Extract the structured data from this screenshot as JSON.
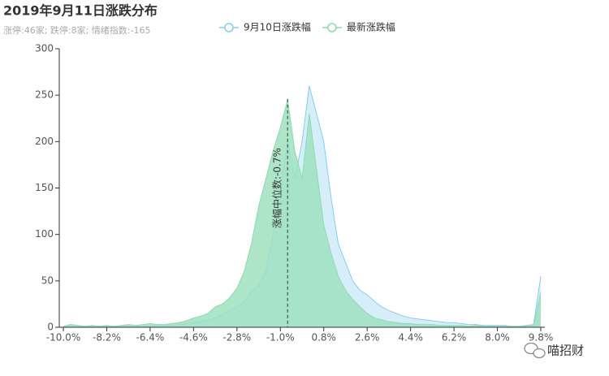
{
  "chart_data": {
    "type": "area",
    "title": "2019年9月11日涨跌分布",
    "subtitle": "涨停:46家; 跌停:8家; 情绪指数:-165",
    "x": [
      -10,
      -9.7,
      -9.4,
      -9.1,
      -8.8,
      -8.5,
      -8.2,
      -7.9,
      -7.6,
      -7.3,
      -7,
      -6.7,
      -6.4,
      -6.1,
      -5.8,
      -5.5,
      -5.2,
      -4.9,
      -4.6,
      -4.3,
      -4,
      -3.7,
      -3.4,
      -3.1,
      -2.8,
      -2.5,
      -2.2,
      -1.9,
      -1.6,
      -1.3,
      -1,
      -0.7,
      -0.4,
      -0.1,
      0.2,
      0.5,
      0.8,
      1.1,
      1.4,
      1.7,
      2,
      2.3,
      2.6,
      2.9,
      3.2,
      3.5,
      3.8,
      4.1,
      4.4,
      4.7,
      5,
      5.3,
      5.6,
      5.9,
      6.2,
      6.5,
      6.8,
      7.1,
      7.4,
      7.7,
      8,
      8.3,
      8.6,
      8.9,
      9.2,
      9.5,
      9.8
    ],
    "series": [
      {
        "name": "9月10日涨跌幅",
        "color": "#86cdf0",
        "fill": "#d6eef9",
        "values": [
          1,
          1,
          1,
          1,
          1,
          1,
          1,
          1,
          1,
          1,
          1,
          1,
          2,
          2,
          2,
          2,
          3,
          4,
          5,
          6,
          8,
          10,
          14,
          18,
          22,
          28,
          38,
          45,
          60,
          100,
          150,
          200,
          160,
          200,
          260,
          230,
          200,
          140,
          90,
          70,
          50,
          40,
          35,
          28,
          22,
          18,
          15,
          12,
          10,
          9,
          8,
          7,
          6,
          5,
          5,
          4,
          3,
          3,
          2,
          2,
          2,
          2,
          1,
          1,
          2,
          3,
          55
        ]
      },
      {
        "name": "最新涨跌幅",
        "color": "#8ddbb1",
        "fill": "#9fe0c0",
        "values": [
          1,
          3,
          2,
          1,
          2,
          1,
          2,
          1,
          2,
          3,
          2,
          3,
          4,
          3,
          3,
          4,
          5,
          7,
          10,
          12,
          15,
          22,
          25,
          32,
          42,
          60,
          90,
          130,
          160,
          190,
          215,
          245,
          190,
          160,
          230,
          170,
          110,
          80,
          55,
          40,
          30,
          22,
          15,
          10,
          8,
          6,
          5,
          4,
          4,
          3,
          3,
          3,
          2,
          2,
          2,
          2,
          1,
          2,
          1,
          1,
          1,
          1,
          1,
          1,
          1,
          2,
          38
        ]
      }
    ],
    "xlim": [
      -10,
      9.8
    ],
    "xticks": [
      {
        "value": -10,
        "label": "-10.0%"
      },
      {
        "value": -8.2,
        "label": "-8.2%"
      },
      {
        "value": -6.4,
        "label": "-6.4%"
      },
      {
        "value": -4.6,
        "label": "-4.6%"
      },
      {
        "value": -2.8,
        "label": "-2.8%"
      },
      {
        "value": -1,
        "label": "-1.0%"
      },
      {
        "value": 0.8,
        "label": "0.8%"
      },
      {
        "value": 2.6,
        "label": "2.6%"
      },
      {
        "value": 4.4,
        "label": "4.4%"
      },
      {
        "value": 6.2,
        "label": "6.2%"
      },
      {
        "value": 8,
        "label": "8.0%"
      },
      {
        "value": 9.8,
        "label": "9.8%"
      }
    ],
    "ylim": [
      0,
      300
    ],
    "yticks": [
      0,
      50,
      100,
      150,
      200,
      250,
      300
    ],
    "annotation": {
      "x": -0.7,
      "label": "涨幅中位数:-0.7%"
    }
  },
  "watermark": "喵招财"
}
